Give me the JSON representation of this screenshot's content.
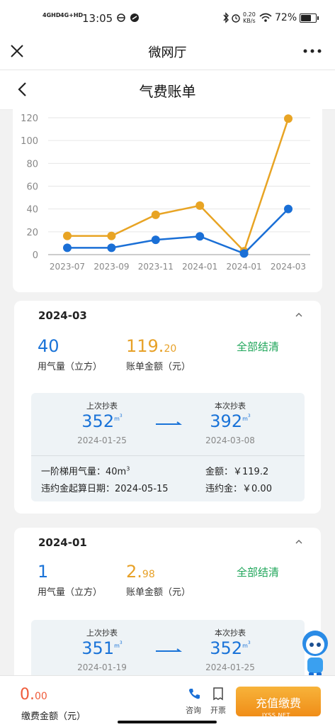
{
  "status_bar": {
    "net1": "4GHD",
    "net2": "4G+HD",
    "time": "13:05",
    "speed_value": "0.20",
    "speed_unit": "KB/s",
    "battery": "72%",
    "battery_level": 0.72
  },
  "nav": {
    "title": "微网厅",
    "page_title": "气费账单"
  },
  "chart_data": {
    "type": "line",
    "categories": [
      "2023-07",
      "2023-09",
      "2023-11",
      "2024-01",
      "2024-01",
      "2024-03"
    ],
    "ylim": [
      0,
      120
    ],
    "yticks": [
      "0",
      "20",
      "40",
      "60",
      "80",
      "100",
      "120"
    ],
    "grid": true,
    "series": [
      {
        "values": [
          16.4,
          16.4,
          34.9,
          43.0,
          2.98,
          119.2
        ],
        "color": "#e8a424"
      },
      {
        "values": [
          6,
          6,
          13,
          16,
          1,
          40
        ],
        "color": "#1a6fd6"
      }
    ]
  },
  "bills": [
    {
      "month": "2024-03",
      "usage": "40",
      "usage_label": "用气量（立方）",
      "amount_int": "119.",
      "amount_dec": "20",
      "amount_label": "账单金额（元）",
      "status": "全部结清",
      "prev_label": "上次抄表",
      "prev_value": "352",
      "prev_date": "2024-01-25",
      "curr_label": "本次抄表",
      "curr_value": "392",
      "curr_date": "2024-03-08",
      "unit": "m",
      "unit_sup": "3",
      "tier_label": "一阶梯用气量：",
      "tier_value": "40m",
      "tier_sup": "3",
      "fee_label": "金额：",
      "fee_value": "￥119.2",
      "penalty_date_label": "违约金起算日期：",
      "penalty_date": "2024-05-15",
      "penalty_label": "违约金：",
      "penalty_value": "￥0.00"
    },
    {
      "month": "2024-01",
      "usage": "1",
      "usage_label": "用气量（立方）",
      "amount_int": "2.",
      "amount_dec": "98",
      "amount_label": "账单金额（元）",
      "status": "全部结清",
      "prev_label": "上次抄表",
      "prev_value": "351",
      "prev_date": "2024-01-19",
      "curr_label": "本次抄表",
      "curr_value": "352",
      "curr_date": "2024-01-25",
      "unit": "m",
      "unit_sup": "3"
    }
  ],
  "bottom": {
    "amount_int": "0.",
    "amount_dec": "00",
    "amount_label": "缴费金额（元）",
    "consult_label": "咨询",
    "invoice_label": "开票",
    "pay_label": "充值缴费",
    "watermark": "JYSS.NET"
  }
}
